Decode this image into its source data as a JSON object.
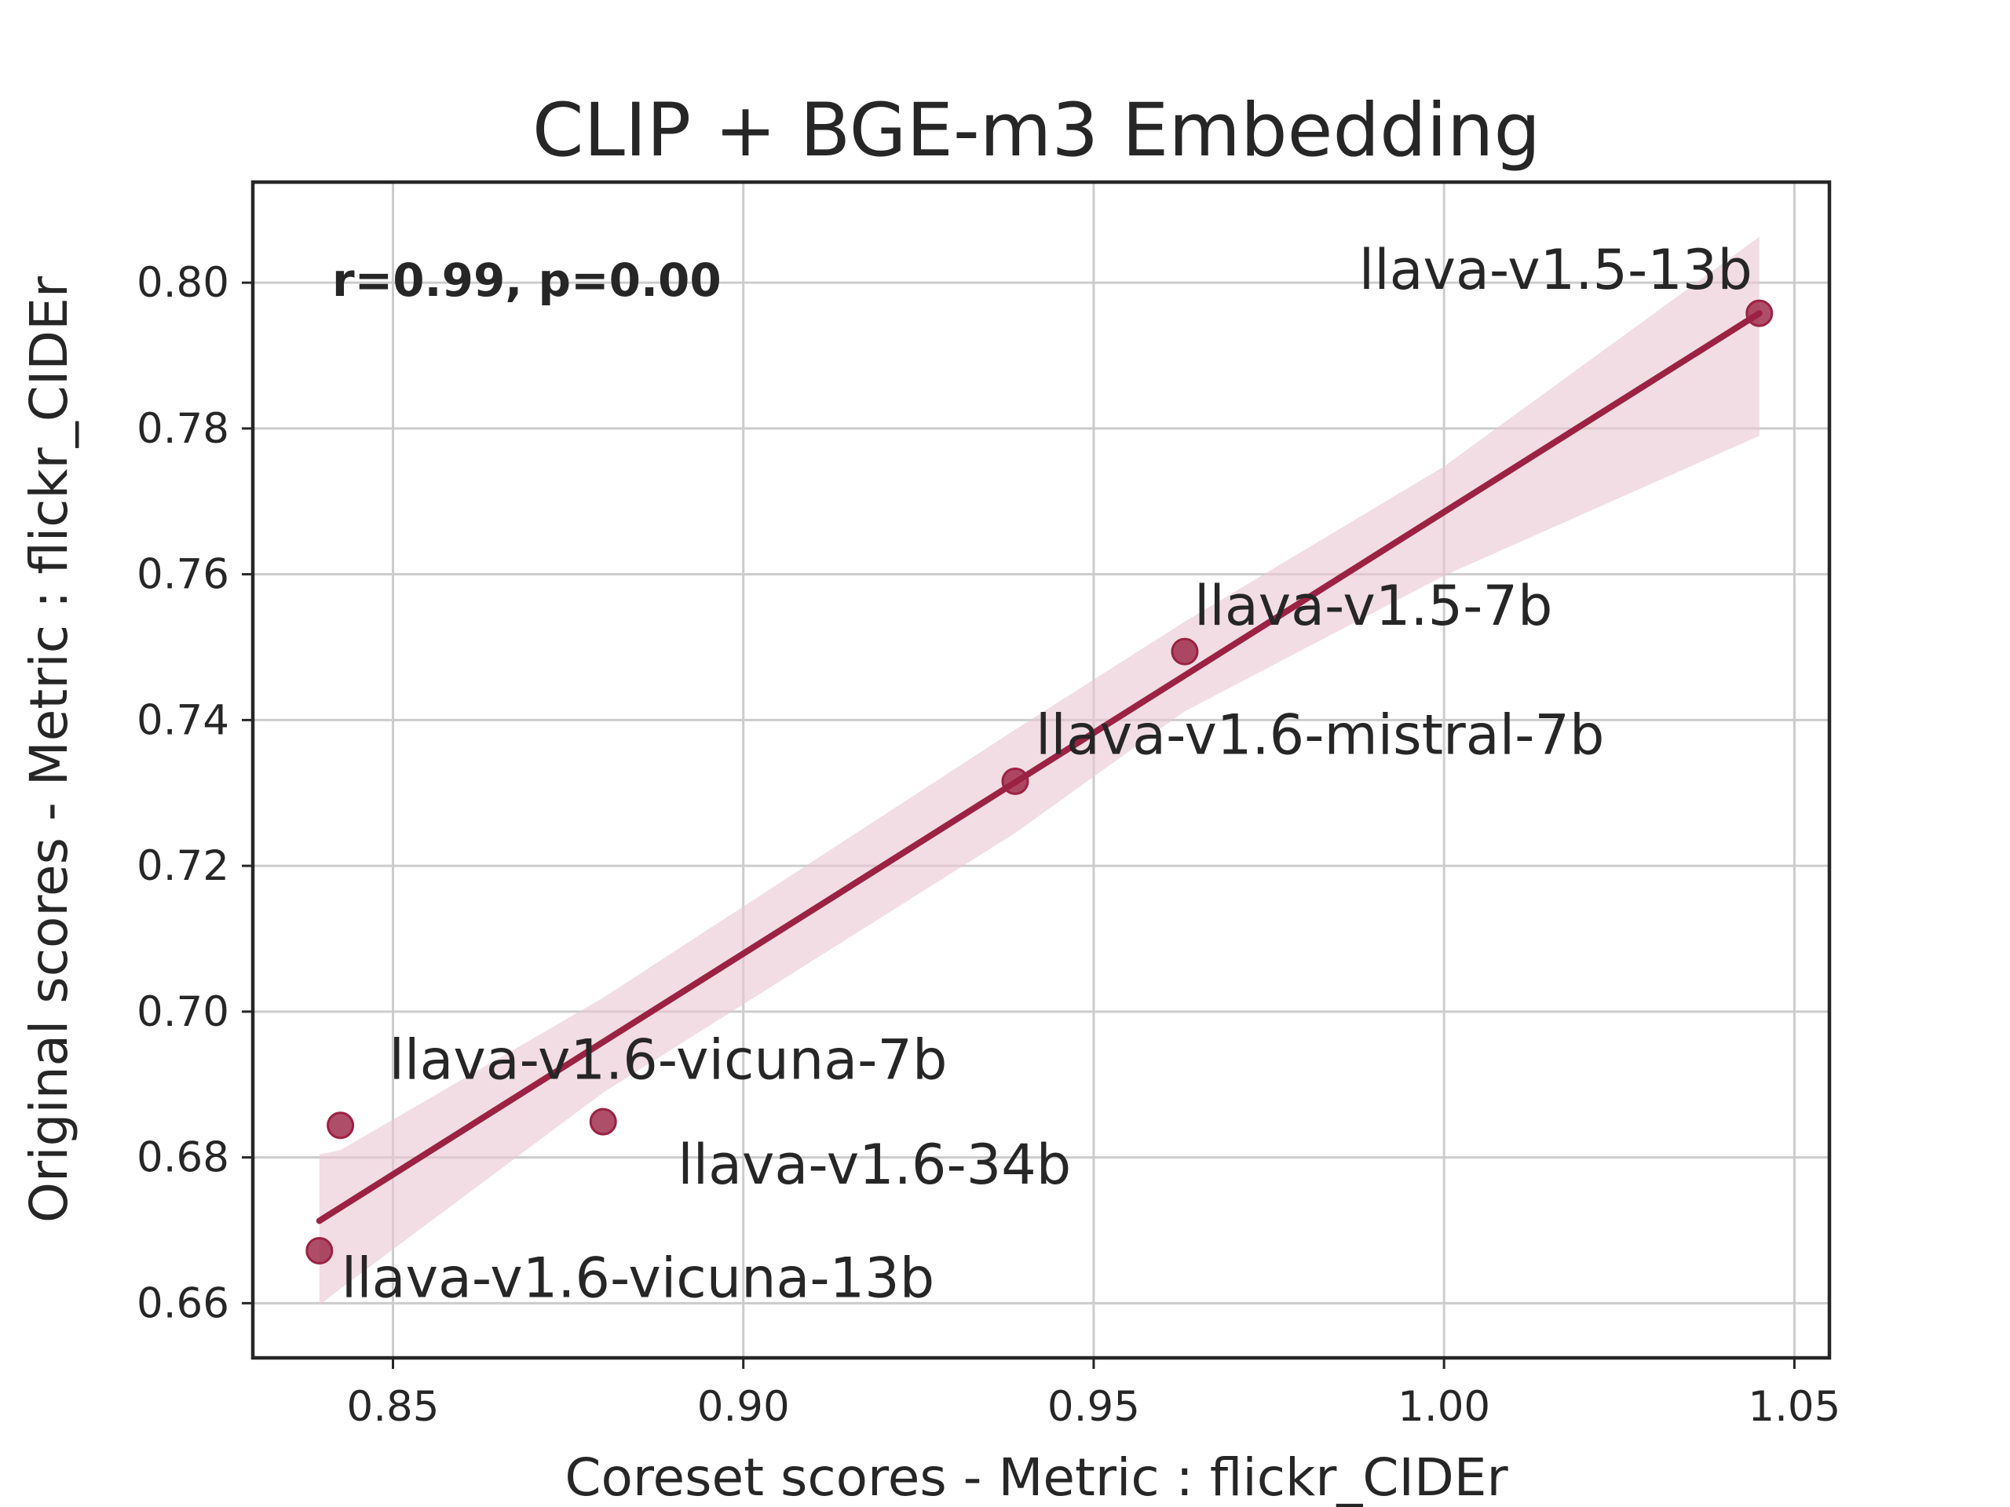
{
  "chart_data": {
    "type": "scatter",
    "title": "CLIP + BGE-m3 Embedding",
    "xlabel": "Coreset scores - Metric : flickr_CIDEr",
    "ylabel": "Original scores - Metric : flickr_CIDEr",
    "annotation": "r=0.99, p=0.00",
    "xlim": [
      0.83,
      1.055
    ],
    "ylim": [
      0.6525,
      0.8138
    ],
    "xticks": [
      0.85,
      0.9,
      0.95,
      1.0,
      1.05
    ],
    "xtick_labels": [
      "0.85",
      "0.90",
      "0.95",
      "1.00",
      "1.05"
    ],
    "yticks": [
      0.66,
      0.68,
      0.7,
      0.72,
      0.74,
      0.76,
      0.78,
      0.8
    ],
    "ytick_labels": [
      "0.66",
      "0.68",
      "0.70",
      "0.72",
      "0.74",
      "0.76",
      "0.78",
      "0.80"
    ],
    "grid": true,
    "color": "#9b2242",
    "band_color": "#e8c6d0",
    "points": [
      {
        "label": "llava-v1.5-13b",
        "x": 1.045,
        "y": 0.7958
      },
      {
        "label": "llava-v1.5-7b",
        "x": 0.963,
        "y": 0.7494
      },
      {
        "label": "llava-v1.6-mistral-7b",
        "x": 0.9388,
        "y": 0.7316
      },
      {
        "label": "llava-v1.6-vicuna-7b",
        "x": 0.8425,
        "y": 0.6844
      },
      {
        "label": "llava-v1.6-34b",
        "x": 0.88,
        "y": 0.6849
      },
      {
        "label": "llava-v1.6-vicuna-13b",
        "x": 0.8395,
        "y": 0.6672
      }
    ],
    "regression": {
      "x": [
        0.8395,
        1.045
      ],
      "y": [
        0.6713,
        0.7958
      ]
    },
    "confidence_band": {
      "x": [
        0.8395,
        0.8425,
        0.88,
        0.9388,
        0.963,
        1.0,
        1.045
      ],
      "lower": [
        0.6597,
        0.662,
        0.6889,
        0.7245,
        0.7412,
        0.7598,
        0.779
      ],
      "upper": [
        0.6804,
        0.681,
        0.7019,
        0.7387,
        0.7535,
        0.7748,
        0.8063
      ]
    }
  }
}
